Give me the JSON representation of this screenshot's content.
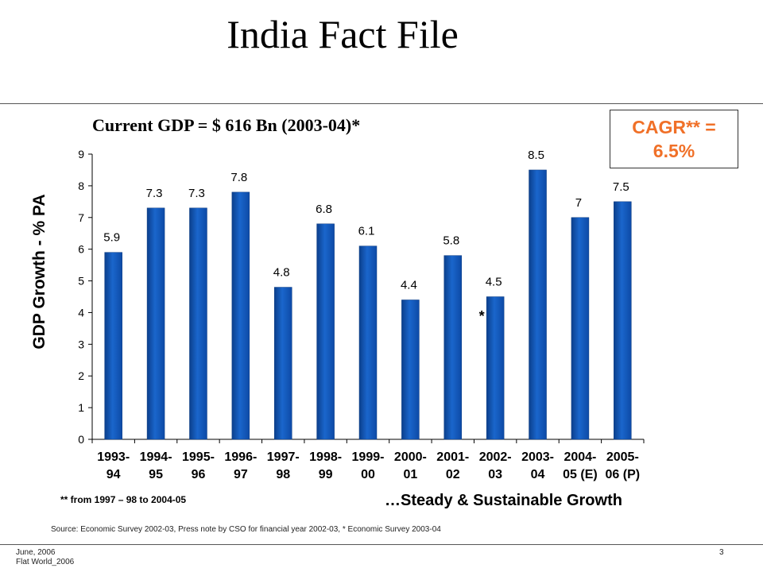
{
  "slide": {
    "title": "India Fact File",
    "subtitle": "Current GDP = $ 616 Bn (2003-04)*",
    "cagr": [
      "CAGR** =",
      "6.5%"
    ],
    "note": "** from 1997 – 98 to 2004-05",
    "tagline": "…Steady & Sustainable Growth",
    "source": "Source: Economic Survey 2002-03, Press note by CSO for financial year 2002-03, * Economic Survey 2003-04",
    "footer": [
      "June, 2006",
      "Flat World_2006"
    ],
    "page_number": "3"
  },
  "colors": {
    "accent": "#f07028",
    "bar": "#1a66cc"
  },
  "chart_data": {
    "type": "bar",
    "ylabel": "GDP Growth - % PA",
    "ylim": [
      0,
      9
    ],
    "yticks": [
      0,
      1,
      2,
      3,
      4,
      5,
      6,
      7,
      8,
      9
    ],
    "grid": false,
    "categories": [
      [
        "1993-",
        "94"
      ],
      [
        "1994-",
        "95"
      ],
      [
        "1995-",
        "96"
      ],
      [
        "1996-",
        "97"
      ],
      [
        "1997-",
        "98"
      ],
      [
        "1998-",
        "99"
      ],
      [
        "1999-",
        "00"
      ],
      [
        "2000-",
        "01"
      ],
      [
        "2001-",
        "02"
      ],
      [
        "2002-",
        "03"
      ],
      [
        "2003-",
        "04"
      ],
      [
        "2004-",
        "05 (E)"
      ],
      [
        "2005-",
        "06 (P)"
      ]
    ],
    "values": [
      5.9,
      7.3,
      7.3,
      7.8,
      4.8,
      6.8,
      6.1,
      4.4,
      5.8,
      4.5,
      8.5,
      7,
      7.5
    ],
    "data_labels": [
      "5.9",
      "7.3",
      "7.3",
      "7.8",
      "4.8",
      "6.8",
      "6.1",
      "4.4",
      "5.8",
      "4.5",
      "8.5",
      "7",
      "7.5"
    ],
    "annotations": [
      {
        "category_index": 9,
        "text": "*"
      }
    ]
  }
}
